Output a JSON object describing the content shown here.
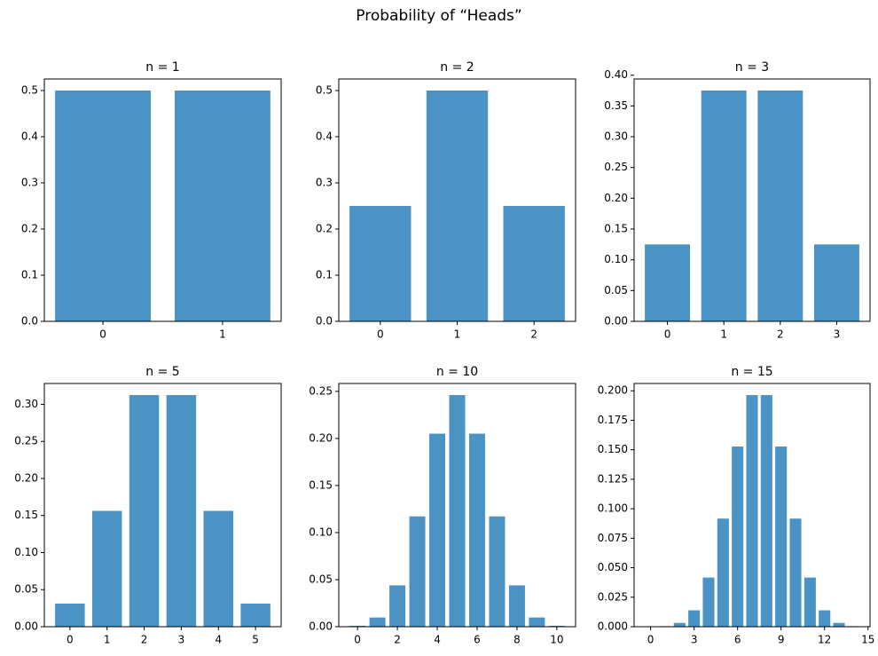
{
  "title": "Probability of “Heads”",
  "chart_data": [
    {
      "type": "bar",
      "title": "n = 1",
      "color": "#4b93c4",
      "x": [
        0,
        1
      ],
      "values": [
        0.5,
        0.5
      ],
      "xlim": [
        -0.49,
        1.49
      ],
      "xticks": [
        0,
        1
      ],
      "ylim": [
        0,
        0.525
      ],
      "yticks": [
        {
          "value": 0,
          "label": "0.0"
        },
        0.1,
        0.2,
        0.3,
        0.4,
        0.5
      ]
    },
    {
      "type": "bar",
      "title": "n = 2",
      "color": "#4b93c4",
      "x": [
        0,
        1,
        2
      ],
      "values": [
        0.25,
        0.5,
        0.25
      ],
      "xlim": [
        -0.54,
        2.54
      ],
      "xticks": [
        0,
        1,
        2
      ],
      "ylim": [
        0,
        0.525
      ],
      "yticks": [
        {
          "value": 0,
          "label": "0.0"
        },
        0.1,
        0.2,
        0.3,
        0.4,
        0.5
      ]
    },
    {
      "type": "bar",
      "title": "n = 3",
      "color": "#4b93c4",
      "x": [
        0,
        1,
        2,
        3
      ],
      "values": [
        0.125,
        0.375,
        0.375,
        0.125
      ],
      "xlim": [
        -0.59,
        3.59
      ],
      "xticks": [
        0,
        1,
        2,
        3
      ],
      "ylim": [
        0,
        0.39375
      ],
      "yticks": [
        {
          "value": 0,
          "label": "0.00"
        },
        0.05,
        {
          "value": 0.1,
          "label": "0.10"
        },
        0.15,
        {
          "value": 0.2,
          "label": "0.20"
        },
        0.25,
        {
          "value": 0.3,
          "label": "0.30"
        },
        0.35,
        {
          "value": 0.4,
          "label": "0.40"
        }
      ]
    },
    {
      "type": "bar",
      "title": "n = 5",
      "color": "#4b93c4",
      "x": [
        0,
        1,
        2,
        3,
        4,
        5
      ],
      "values": [
        0.03125,
        0.15625,
        0.3125,
        0.3125,
        0.15625,
        0.03125
      ],
      "xlim": [
        -0.69,
        5.69
      ],
      "xticks": [
        0,
        1,
        2,
        3,
        4,
        5
      ],
      "ylim": [
        0,
        0.328125
      ],
      "yticks": [
        {
          "value": 0,
          "label": "0.00"
        },
        0.05,
        {
          "value": 0.1,
          "label": "0.10"
        },
        0.15,
        {
          "value": 0.2,
          "label": "0.20"
        },
        0.25,
        {
          "value": 0.3,
          "label": "0.30"
        }
      ]
    },
    {
      "type": "bar",
      "title": "n = 10",
      "color": "#4b93c4",
      "x": [
        0,
        1,
        2,
        3,
        4,
        5,
        6,
        7,
        8,
        9,
        10
      ],
      "values": [
        0.000977,
        0.009766,
        0.043945,
        0.117188,
        0.205078,
        0.246094,
        0.205078,
        0.117188,
        0.043945,
        0.009766,
        0.000977
      ],
      "xlim": [
        -0.94,
        10.94
      ],
      "xticks": [
        0,
        2,
        4,
        6,
        8,
        10
      ],
      "ylim": [
        0,
        0.2584
      ],
      "yticks": [
        {
          "value": 0,
          "label": "0.00"
        },
        0.05,
        {
          "value": 0.1,
          "label": "0.10"
        },
        0.15,
        {
          "value": 0.2,
          "label": "0.20"
        },
        0.25
      ]
    },
    {
      "type": "bar",
      "title": "n = 15",
      "color": "#4b93c4",
      "x": [
        0,
        1,
        2,
        3,
        4,
        5,
        6,
        7,
        8,
        9,
        10,
        11,
        12,
        13,
        14,
        15
      ],
      "values": [
        3.05e-05,
        0.000458,
        0.003204,
        0.013885,
        0.041656,
        0.091644,
        0.15274,
        0.196381,
        0.196381,
        0.15274,
        0.091644,
        0.041656,
        0.013885,
        0.003204,
        0.000458,
        3.05e-05
      ],
      "xlim": [
        -1.14,
        15.14
      ],
      "xticks": [
        0,
        3,
        6,
        9,
        12,
        15
      ],
      "ylim": [
        0,
        0.2062
      ],
      "yticks": [
        {
          "value": 0,
          "label": "0.000"
        },
        0.025,
        {
          "value": 0.05,
          "label": "0.050"
        },
        0.075,
        {
          "value": 0.1,
          "label": "0.100"
        },
        0.125,
        {
          "value": 0.15,
          "label": "0.150"
        },
        0.175,
        {
          "value": 0.2,
          "label": "0.200"
        }
      ]
    }
  ]
}
